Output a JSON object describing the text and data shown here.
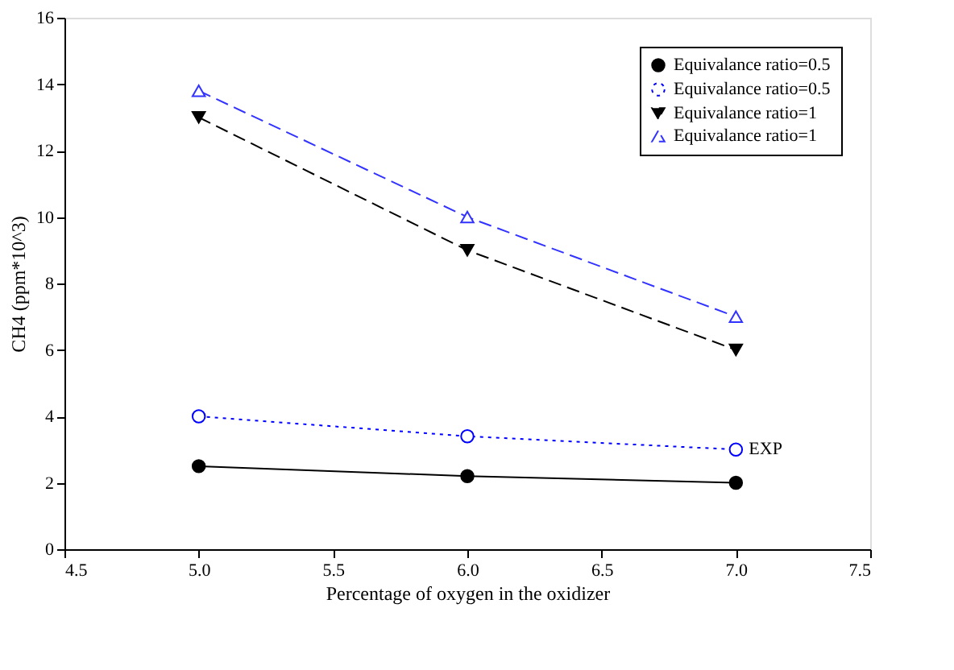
{
  "chart_data": {
    "type": "line",
    "xlabel": "Percentage of oxygen in the oxidizer",
    "ylabel": "CH4 (ppm*10^3)",
    "x": [
      5.0,
      6.0,
      7.0
    ],
    "series": [
      {
        "name": "Equivalance ratio=0.5",
        "color": "#000000",
        "values": [
          2.5,
          2.2,
          2.0
        ],
        "marker": "circle",
        "line_style": "solid"
      },
      {
        "name": "Equivalance ratio=0.5",
        "color": "#0000ff",
        "values": [
          4.0,
          3.4,
          3.0
        ],
        "marker": "circle",
        "line_style": "dotted"
      },
      {
        "name": "Equivalance ratio=1",
        "color": "#000000",
        "values": [
          13.0,
          9.0,
          6.0
        ],
        "marker": "triangle",
        "line_style": "dashed"
      },
      {
        "name": "Equivalance ratio=1",
        "color": "#3333ff",
        "values": [
          13.8,
          10.0,
          7.0
        ],
        "marker": "triangle",
        "line_style": "dashed"
      }
    ],
    "annotations": [
      {
        "text": "EXP",
        "x": 7.0,
        "y": 3.0
      }
    ],
    "xlim": [
      4.5,
      7.5
    ],
    "xticks": [
      {
        "value": 4.5,
        "label": "4.5"
      },
      {
        "value": 5.0,
        "label": "5.0"
      },
      {
        "value": 5.5,
        "label": "5.5"
      },
      {
        "value": 6.0,
        "label": "6.0"
      },
      {
        "value": 6.5,
        "label": "6.5"
      },
      {
        "value": 7.0,
        "label": "7.0"
      },
      {
        "value": 7.5,
        "label": "7.5"
      }
    ],
    "ylim": [
      0,
      16
    ],
    "yticks": [
      0,
      2,
      4,
      6,
      8,
      10,
      12,
      14,
      16
    ],
    "grid": false,
    "legend": "top right"
  }
}
